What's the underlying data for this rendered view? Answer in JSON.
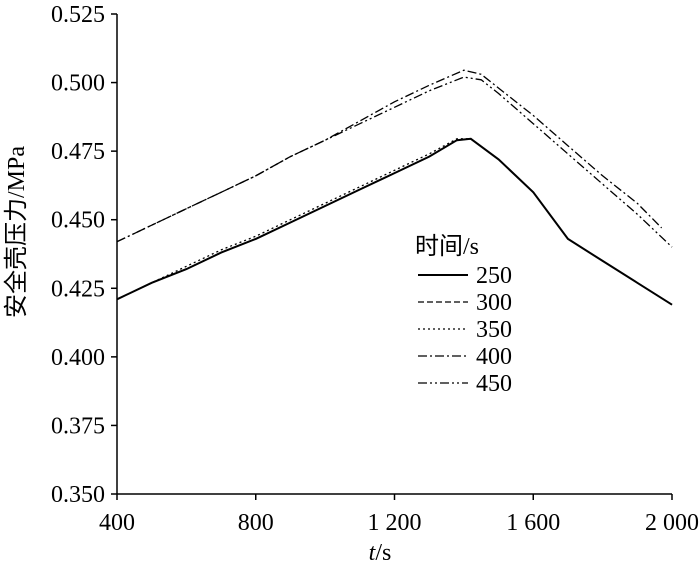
{
  "chart_data": {
    "type": "line",
    "title": "",
    "xlabel": "t/s",
    "xlabel_var": "t",
    "xlabel_unit": "/s",
    "ylabel": "安全壳压力/MPa",
    "xlim": [
      400,
      2000
    ],
    "ylim": [
      0.35,
      0.525
    ],
    "x_ticks": [
      400,
      800,
      1200,
      1600,
      2000
    ],
    "x_tick_labels": [
      "400",
      "800",
      "1 200",
      "1 600",
      "2 000"
    ],
    "y_ticks": [
      0.35,
      0.375,
      0.4,
      0.425,
      0.45,
      0.475,
      0.5,
      0.525
    ],
    "y_tick_labels": [
      "0.350",
      "0.375",
      "0.400",
      "0.425",
      "0.450",
      "0.475",
      "0.500",
      "0.525"
    ],
    "grid": false,
    "legend": {
      "title": "时间/s",
      "placement": "center-right"
    },
    "series": [
      {
        "name": "250",
        "dash": "solid",
        "x": [
          400,
          500,
          600,
          700,
          800,
          900,
          1000,
          1100,
          1200,
          1300,
          1380,
          1420,
          1500,
          1600,
          1700,
          1800,
          1900,
          2000
        ],
        "y": [
          0.421,
          0.427,
          0.432,
          0.438,
          0.443,
          0.449,
          0.455,
          0.461,
          0.467,
          0.473,
          0.479,
          0.4795,
          0.472,
          0.46,
          0.443,
          0.435,
          0.427,
          0.419
        ]
      },
      {
        "name": "300",
        "dash": "dashed",
        "x": [
          400,
          500,
          600,
          700,
          800,
          900,
          1000,
          1100,
          1200,
          1300,
          1380,
          1420,
          1500,
          1600,
          1700,
          1800,
          1900,
          2000
        ],
        "y": [
          0.421,
          0.427,
          0.432,
          0.438,
          0.443,
          0.449,
          0.455,
          0.461,
          0.467,
          0.473,
          0.479,
          0.4795,
          0.472,
          0.46,
          0.443,
          0.435,
          0.427,
          0.419
        ]
      },
      {
        "name": "350",
        "dash": "dotted",
        "x": [
          400,
          500,
          600,
          700,
          800,
          900,
          1000,
          1100,
          1200,
          1300,
          1380,
          1420,
          1500,
          1600,
          1700,
          1800,
          1900,
          2000
        ],
        "y": [
          0.421,
          0.427,
          0.433,
          0.439,
          0.444,
          0.45,
          0.456,
          0.462,
          0.468,
          0.474,
          0.4795,
          0.4795,
          0.472,
          0.46,
          0.443,
          0.435,
          0.427,
          0.419
        ]
      },
      {
        "name": "400",
        "dash": "dashdot",
        "x": [
          400,
          500,
          600,
          700,
          800,
          900,
          1000,
          1100,
          1200,
          1300,
          1400,
          1450,
          1500,
          1600,
          1700,
          1800,
          1900,
          1970
        ],
        "y": [
          0.442,
          0.448,
          0.454,
          0.46,
          0.466,
          0.473,
          0.479,
          0.486,
          0.493,
          0.499,
          0.5045,
          0.503,
          0.498,
          0.488,
          0.477,
          0.466,
          0.456,
          0.447
        ]
      },
      {
        "name": "450",
        "dash": "dashdotdot",
        "x": [
          400,
          500,
          600,
          700,
          800,
          900,
          1000,
          1100,
          1200,
          1300,
          1400,
          1450,
          1500,
          1600,
          1700,
          1800,
          1900,
          2000
        ],
        "y": [
          0.442,
          0.448,
          0.454,
          0.46,
          0.466,
          0.473,
          0.479,
          0.485,
          0.491,
          0.497,
          0.502,
          0.501,
          0.496,
          0.485,
          0.474,
          0.463,
          0.452,
          0.44
        ]
      }
    ]
  }
}
